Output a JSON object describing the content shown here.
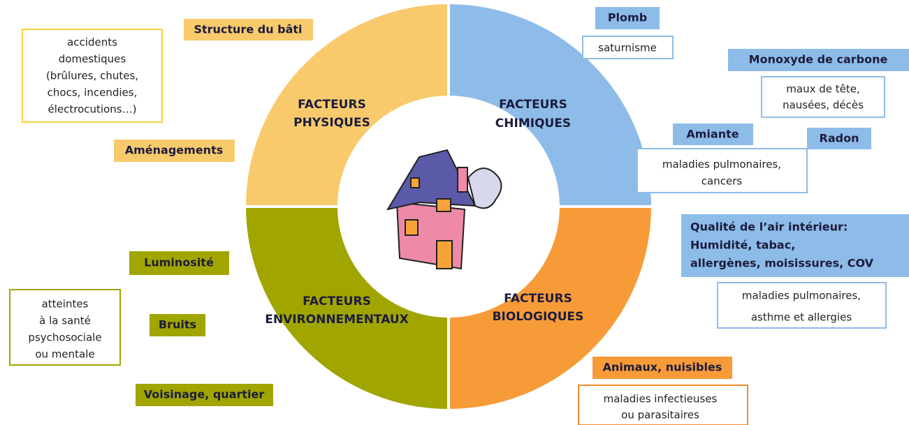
{
  "quadrants": [
    {
      "title": [
        "FACTEURS",
        "PHYSIQUES"
      ]
    },
    {
      "title": [
        "FACTEURS",
        "CHIMIQUES"
      ]
    },
    {
      "title": [
        "FACTEURS",
        "BIOLOGIQUES"
      ]
    },
    {
      "title": [
        "FACTEURS",
        "ENVIRONNEMENTAUX"
      ]
    }
  ],
  "physical": {
    "tags": [
      "Structure du bâti",
      "Aménagements"
    ],
    "effects": [
      [
        "accidents",
        "domestiques",
        "(brûlures, chutes,",
        "chocs, incendies,",
        "électrocutions…)"
      ]
    ]
  },
  "chemical": {
    "tags": [
      "Plomb",
      "Monoxyde de carbone",
      "Amiante",
      "Radon",
      [
        "Qualité de l’air intérieur:",
        "Humidité, tabac,",
        "allergènes, moisissures, COV"
      ]
    ],
    "effects": [
      [
        "saturnisme"
      ],
      [
        "maux de tête,",
        "nausées, décès"
      ],
      [
        "maladies pulmonaires,",
        "cancers"
      ],
      [
        "maladies pulmonaires,",
        "asthme et allergies"
      ]
    ]
  },
  "biological": {
    "tags": [
      "Animaux, nuisibles"
    ],
    "effects": [
      [
        "maladies infectieuses",
        "ou parasitaires"
      ]
    ]
  },
  "environmental": {
    "tags": [
      "Luminosité",
      "Bruits",
      "Voisinage, quartier"
    ],
    "effects": [
      [
        "atteintes",
        "à la santé",
        "psychosociale",
        "ou mentale"
      ]
    ]
  }
}
